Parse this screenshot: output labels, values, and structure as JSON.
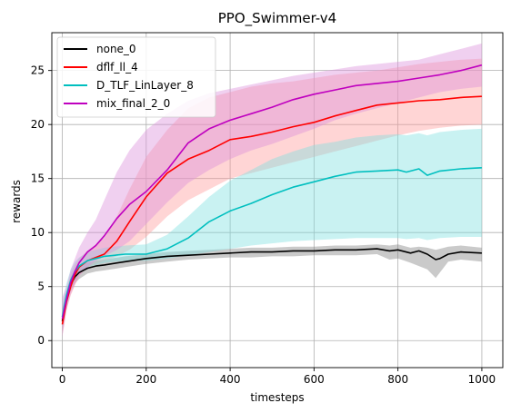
{
  "chart_data": {
    "type": "line",
    "title": "PPO_Swimmer-v4",
    "xlabel": "timesteps",
    "ylabel": "rewards",
    "xlim": [
      -25,
      1050
    ],
    "ylim": [
      -2.5,
      28.5
    ],
    "xticks": [
      0,
      200,
      400,
      600,
      800,
      1000
    ],
    "yticks": [
      0,
      5,
      10,
      15,
      20,
      25
    ],
    "grid": true,
    "legend_position": "top-left",
    "series": [
      {
        "name": "none_0",
        "color": "#000000",
        "band_color": "#808080",
        "x": [
          0,
          10,
          20,
          30,
          40,
          60,
          80,
          100,
          150,
          200,
          250,
          300,
          350,
          400,
          450,
          500,
          550,
          600,
          650,
          700,
          750,
          780,
          800,
          830,
          850,
          870,
          890,
          900,
          920,
          950,
          1000
        ],
        "y": [
          1.8,
          3.8,
          5.2,
          5.9,
          6.3,
          6.7,
          6.9,
          7.0,
          7.3,
          7.6,
          7.8,
          7.9,
          8.0,
          8.1,
          8.2,
          8.2,
          8.3,
          8.3,
          8.4,
          8.4,
          8.5,
          8.3,
          8.4,
          8.1,
          8.3,
          8.0,
          7.5,
          7.6,
          8.0,
          8.2,
          8.1
        ],
        "upper": [
          3.0,
          4.5,
          5.9,
          6.5,
          6.9,
          7.2,
          7.4,
          7.5,
          7.8,
          8.0,
          8.2,
          8.3,
          8.4,
          8.5,
          8.6,
          8.6,
          8.7,
          8.7,
          8.8,
          8.8,
          8.9,
          8.8,
          8.9,
          8.6,
          8.7,
          8.6,
          8.4,
          8.5,
          8.7,
          8.8,
          8.6
        ],
        "lower": [
          0.8,
          3.1,
          4.6,
          5.3,
          5.7,
          6.2,
          6.4,
          6.5,
          6.8,
          7.1,
          7.3,
          7.5,
          7.6,
          7.7,
          7.7,
          7.8,
          7.8,
          7.9,
          7.9,
          7.9,
          8.0,
          7.5,
          7.6,
          7.2,
          6.9,
          6.6,
          5.8,
          6.3,
          7.3,
          7.5,
          7.3
        ]
      },
      {
        "name": "dflf_ll_4",
        "color": "#ff0000",
        "band_color": "#ff9a9a",
        "x": [
          0,
          10,
          20,
          30,
          40,
          60,
          80,
          100,
          130,
          160,
          200,
          250,
          300,
          350,
          400,
          450,
          500,
          550,
          600,
          650,
          700,
          750,
          800,
          850,
          900,
          950,
          1000
        ],
        "y": [
          1.5,
          3.6,
          5.0,
          6.1,
          6.8,
          7.4,
          7.7,
          8.0,
          9.2,
          11.0,
          13.3,
          15.5,
          16.8,
          17.6,
          18.6,
          18.9,
          19.3,
          19.8,
          20.2,
          20.8,
          21.3,
          21.8,
          22.0,
          22.2,
          22.3,
          22.5,
          22.6
        ],
        "upper": [
          3.0,
          4.6,
          6.2,
          7.1,
          7.6,
          8.3,
          8.9,
          9.5,
          11.5,
          14.0,
          17.0,
          19.5,
          21.5,
          22.5,
          23.0,
          23.5,
          23.8,
          24.0,
          24.3,
          24.6,
          24.8,
          25.0,
          25.3,
          25.6,
          25.8,
          26.0,
          26.1
        ],
        "lower": [
          0.4,
          2.8,
          4.2,
          5.1,
          6.0,
          6.8,
          7.1,
          7.4,
          7.8,
          8.4,
          9.6,
          11.5,
          13.0,
          14.0,
          15.0,
          15.5,
          16.0,
          16.5,
          17.0,
          17.5,
          18.0,
          18.5,
          19.0,
          19.4,
          19.7,
          19.9,
          20.0
        ]
      },
      {
        "name": "D_TLF_LinLayer_8",
        "color": "#00bfbf",
        "band_color": "#7fdfdf",
        "x": [
          0,
          10,
          20,
          30,
          40,
          60,
          80,
          100,
          150,
          200,
          250,
          300,
          350,
          400,
          450,
          500,
          550,
          600,
          650,
          700,
          750,
          800,
          820,
          850,
          870,
          900,
          950,
          1000
        ],
        "y": [
          2.2,
          4.2,
          5.6,
          6.4,
          6.9,
          7.4,
          7.6,
          7.8,
          8.0,
          8.0,
          8.5,
          9.5,
          11.0,
          12.0,
          12.7,
          13.5,
          14.2,
          14.7,
          15.2,
          15.6,
          15.7,
          15.8,
          15.6,
          15.9,
          15.3,
          15.7,
          15.9,
          16.0
        ],
        "upper": [
          3.6,
          5.3,
          6.6,
          7.3,
          7.7,
          8.2,
          8.4,
          8.6,
          8.8,
          8.9,
          9.8,
          11.5,
          13.3,
          14.8,
          15.8,
          16.8,
          17.5,
          18.1,
          18.4,
          18.8,
          19.0,
          19.1,
          19.0,
          19.2,
          19.0,
          19.3,
          19.5,
          19.6
        ],
        "lower": [
          1.2,
          3.2,
          4.8,
          5.6,
          6.2,
          6.8,
          7.0,
          7.2,
          7.4,
          7.4,
          7.6,
          7.9,
          8.2,
          8.5,
          8.8,
          9.0,
          9.2,
          9.3,
          9.4,
          9.5,
          9.5,
          9.5,
          9.4,
          9.5,
          9.3,
          9.5,
          9.6,
          9.6
        ]
      },
      {
        "name": "mix_final_2_0",
        "color": "#bf00bf",
        "band_color": "#dc8fdc",
        "x": [
          0,
          10,
          20,
          30,
          40,
          60,
          80,
          100,
          130,
          160,
          200,
          250,
          300,
          350,
          400,
          450,
          500,
          550,
          600,
          650,
          700,
          750,
          800,
          850,
          900,
          950,
          1000
        ],
        "y": [
          2.0,
          3.8,
          5.4,
          6.4,
          7.2,
          8.2,
          8.8,
          9.7,
          11.3,
          12.6,
          13.8,
          15.8,
          18.3,
          19.6,
          20.4,
          21.0,
          21.6,
          22.3,
          22.8,
          23.2,
          23.6,
          23.8,
          24.0,
          24.3,
          24.6,
          25.0,
          25.5
        ],
        "upper": [
          4.0,
          5.0,
          6.6,
          7.6,
          8.6,
          10.0,
          11.2,
          13.0,
          15.6,
          17.6,
          19.5,
          21.0,
          22.2,
          22.9,
          23.3,
          23.7,
          24.1,
          24.5,
          24.8,
          25.1,
          25.4,
          25.6,
          25.8,
          26.0,
          26.5,
          27.0,
          27.5
        ],
        "lower": [
          0.3,
          2.8,
          4.3,
          5.2,
          6.0,
          6.8,
          7.4,
          7.8,
          8.4,
          9.2,
          10.8,
          12.8,
          14.6,
          15.8,
          16.8,
          17.6,
          18.2,
          18.9,
          19.6,
          20.4,
          21.0,
          21.5,
          22.0,
          22.5,
          23.0,
          23.3,
          23.5
        ]
      }
    ]
  }
}
